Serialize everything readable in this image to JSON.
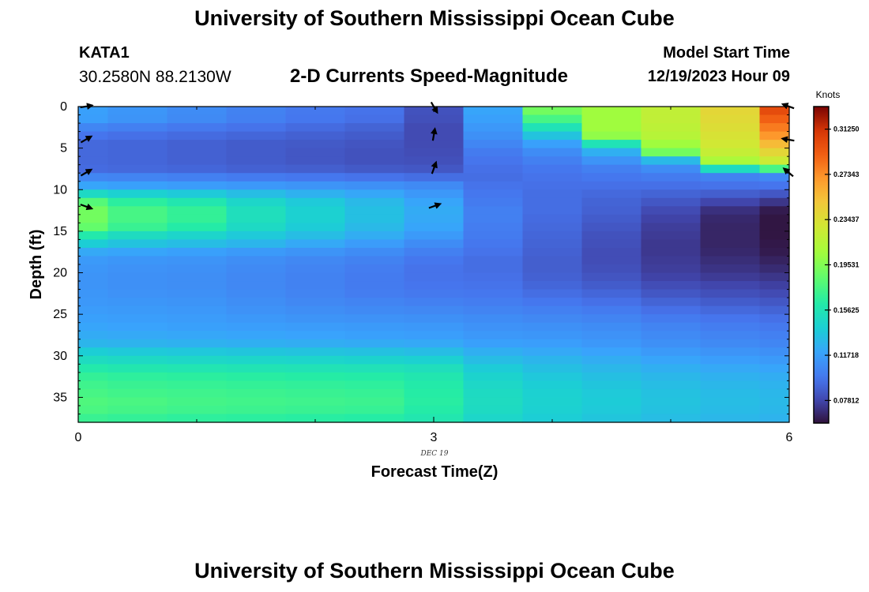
{
  "page": {
    "title": "University of Southern Mississippi Ocean Cube",
    "title_repeat": "University of Southern Mississippi Ocean Cube",
    "station": "KATA1",
    "coordinates": "30.2580N  88.2130W",
    "subtitle": "2-D Currents Speed-Magnitude",
    "model_start_label": "Model Start Time",
    "model_start_value": "12/19/2023 Hour 09"
  },
  "chart_data": {
    "type": "heatmap",
    "title": "2-D Currents Speed-Magnitude",
    "xlabel": "Forecast Time(Z)",
    "ylabel": "Depth (ft)",
    "xlim": [
      0,
      6
    ],
    "ylim": [
      38,
      0
    ],
    "x_ticks": [
      0,
      3,
      6
    ],
    "y_ticks": [
      0,
      5,
      10,
      15,
      20,
      25,
      30,
      35
    ],
    "date_label": "DEC 19",
    "colorbar": {
      "title": "Knots",
      "min": 0.0586,
      "max": 0.332,
      "ticks": [
        "0.07812",
        "0.11718",
        "0.15625",
        "0.19531",
        "0.23437",
        "0.27343",
        "0.31250"
      ]
    },
    "time_edges": [
      0,
      0.25,
      0.75,
      1.25,
      1.75,
      2.25,
      2.75,
      3.25,
      3.75,
      4.25,
      4.75,
      5.25,
      5.75,
      6
    ],
    "depth_edges": [
      0,
      1,
      2,
      3,
      4,
      5,
      6,
      7,
      8,
      9,
      10,
      11,
      12,
      13,
      14,
      15,
      16,
      17,
      18,
      19,
      20,
      21,
      22,
      23,
      24,
      25,
      26,
      27,
      28,
      29,
      30,
      31,
      32,
      33,
      34,
      35,
      36,
      37,
      38
    ],
    "profiles": [
      {
        "time": 0,
        "values": [
          0.118,
          0.117,
          0.105,
          0.097,
          0.092,
          0.092,
          0.092,
          0.093,
          0.105,
          0.12,
          0.148,
          0.18,
          0.19,
          0.19,
          0.185,
          0.16,
          0.14,
          0.122,
          0.115,
          0.113,
          0.112,
          0.112,
          0.113,
          0.114,
          0.116,
          0.118,
          0.12,
          0.123,
          0.128,
          0.14,
          0.15,
          0.16,
          0.168,
          0.172,
          0.175,
          0.178,
          0.176,
          0.17
        ]
      },
      {
        "time": 0.5,
        "values": [
          0.113,
          0.112,
          0.102,
          0.095,
          0.091,
          0.091,
          0.091,
          0.092,
          0.104,
          0.118,
          0.142,
          0.165,
          0.175,
          0.175,
          0.17,
          0.15,
          0.135,
          0.12,
          0.113,
          0.111,
          0.11,
          0.11,
          0.111,
          0.113,
          0.115,
          0.117,
          0.119,
          0.122,
          0.127,
          0.138,
          0.148,
          0.158,
          0.166,
          0.17,
          0.173,
          0.176,
          0.174,
          0.168
        ]
      },
      {
        "time": 1.0,
        "values": [
          0.108,
          0.107,
          0.099,
          0.093,
          0.089,
          0.089,
          0.089,
          0.091,
          0.102,
          0.116,
          0.138,
          0.158,
          0.168,
          0.168,
          0.162,
          0.145,
          0.132,
          0.118,
          0.112,
          0.11,
          0.109,
          0.109,
          0.11,
          0.112,
          0.114,
          0.116,
          0.118,
          0.121,
          0.126,
          0.137,
          0.147,
          0.157,
          0.165,
          0.169,
          0.172,
          0.174,
          0.172,
          0.166
        ]
      },
      {
        "time": 1.5,
        "values": [
          0.103,
          0.102,
          0.096,
          0.091,
          0.087,
          0.087,
          0.087,
          0.089,
          0.1,
          0.114,
          0.132,
          0.146,
          0.152,
          0.152,
          0.148,
          0.138,
          0.128,
          0.115,
          0.109,
          0.107,
          0.106,
          0.106,
          0.107,
          0.109,
          0.111,
          0.114,
          0.117,
          0.12,
          0.125,
          0.136,
          0.146,
          0.156,
          0.164,
          0.168,
          0.171,
          0.173,
          0.171,
          0.165
        ]
      },
      {
        "time": 2.0,
        "values": [
          0.099,
          0.098,
          0.093,
          0.089,
          0.086,
          0.085,
          0.085,
          0.088,
          0.098,
          0.112,
          0.126,
          0.138,
          0.142,
          0.142,
          0.139,
          0.132,
          0.122,
          0.112,
          0.106,
          0.104,
          0.103,
          0.103,
          0.104,
          0.106,
          0.109,
          0.112,
          0.116,
          0.119,
          0.124,
          0.135,
          0.145,
          0.155,
          0.163,
          0.167,
          0.17,
          0.172,
          0.17,
          0.164
        ]
      },
      {
        "time": 2.5,
        "values": [
          0.096,
          0.095,
          0.09,
          0.087,
          0.084,
          0.083,
          0.083,
          0.086,
          0.096,
          0.11,
          0.121,
          0.13,
          0.133,
          0.133,
          0.13,
          0.124,
          0.116,
          0.108,
          0.103,
          0.101,
          0.1,
          0.1,
          0.101,
          0.104,
          0.107,
          0.111,
          0.115,
          0.118,
          0.123,
          0.134,
          0.144,
          0.154,
          0.162,
          0.166,
          0.169,
          0.171,
          0.169,
          0.163
        ]
      },
      {
        "time": 3.0,
        "values": [
          0.083,
          0.082,
          0.08,
          0.08,
          0.08,
          0.081,
          0.082,
          0.085,
          0.094,
          0.107,
          0.114,
          0.12,
          0.123,
          0.122,
          0.12,
          0.115,
          0.108,
          0.102,
          0.098,
          0.096,
          0.096,
          0.097,
          0.099,
          0.102,
          0.106,
          0.11,
          0.114,
          0.117,
          0.122,
          0.132,
          0.142,
          0.152,
          0.158,
          0.161,
          0.163,
          0.164,
          0.162,
          0.158
        ]
      },
      {
        "time": 3.5,
        "values": [
          0.12,
          0.118,
          0.114,
          0.11,
          0.105,
          0.1,
          0.097,
          0.095,
          0.094,
          0.096,
          0.098,
          0.1,
          0.102,
          0.102,
          0.101,
          0.1,
          0.098,
          0.096,
          0.094,
          0.094,
          0.095,
          0.096,
          0.098,
          0.101,
          0.104,
          0.108,
          0.111,
          0.114,
          0.118,
          0.125,
          0.132,
          0.139,
          0.144,
          0.147,
          0.149,
          0.15,
          0.149,
          0.146
        ]
      },
      {
        "time": 4.0,
        "values": [
          0.19,
          0.175,
          0.155,
          0.135,
          0.118,
          0.108,
          0.102,
          0.098,
          0.096,
          0.095,
          0.094,
          0.094,
          0.094,
          0.093,
          0.092,
          0.091,
          0.09,
          0.089,
          0.088,
          0.088,
          0.089,
          0.091,
          0.094,
          0.098,
          0.102,
          0.106,
          0.11,
          0.113,
          0.117,
          0.122,
          0.128,
          0.133,
          0.137,
          0.14,
          0.142,
          0.143,
          0.142,
          0.14
        ]
      },
      {
        "time": 4.5,
        "values": [
          0.205,
          0.205,
          0.205,
          0.2,
          0.155,
          0.125,
          0.112,
          0.102,
          0.098,
          0.095,
          0.092,
          0.09,
          0.089,
          0.087,
          0.085,
          0.083,
          0.082,
          0.081,
          0.081,
          0.082,
          0.084,
          0.087,
          0.091,
          0.095,
          0.1,
          0.104,
          0.108,
          0.111,
          0.114,
          0.119,
          0.124,
          0.129,
          0.133,
          0.136,
          0.138,
          0.139,
          0.138,
          0.136
        ]
      },
      {
        "time": 5.0,
        "values": [
          0.22,
          0.22,
          0.218,
          0.215,
          0.205,
          0.19,
          0.13,
          0.108,
          0.1,
          0.095,
          0.09,
          0.085,
          0.08,
          0.077,
          0.075,
          0.074,
          0.073,
          0.073,
          0.074,
          0.075,
          0.077,
          0.081,
          0.085,
          0.09,
          0.095,
          0.1,
          0.104,
          0.107,
          0.11,
          0.115,
          0.12,
          0.125,
          0.129,
          0.132,
          0.134,
          0.135,
          0.134,
          0.132
        ]
      },
      {
        "time": 5.5,
        "values": [
          0.24,
          0.238,
          0.235,
          0.232,
          0.228,
          0.222,
          0.21,
          0.15,
          0.103,
          0.096,
          0.088,
          0.078,
          0.07,
          0.067,
          0.066,
          0.066,
          0.066,
          0.067,
          0.069,
          0.071,
          0.074,
          0.078,
          0.082,
          0.087,
          0.092,
          0.097,
          0.101,
          0.104,
          0.107,
          0.112,
          0.117,
          0.122,
          0.126,
          0.129,
          0.131,
          0.132,
          0.131,
          0.129
        ]
      },
      {
        "time": 6.0,
        "values": [
          0.3,
          0.29,
          0.28,
          0.27,
          0.255,
          0.24,
          0.225,
          0.175,
          0.106,
          0.097,
          0.085,
          0.072,
          0.062,
          0.06,
          0.06,
          0.06,
          0.061,
          0.062,
          0.065,
          0.068,
          0.072,
          0.076,
          0.08,
          0.085,
          0.09,
          0.095,
          0.099,
          0.102,
          0.105,
          0.11,
          0.115,
          0.12,
          0.124,
          0.127,
          0.129,
          0.13,
          0.129,
          0.127
        ]
      }
    ],
    "vectors": [
      {
        "time": 0.06,
        "depth": 0.0,
        "dir_deg": 80
      },
      {
        "time": 0.06,
        "depth": 4.0,
        "dir_deg": 60
      },
      {
        "time": 0.06,
        "depth": 8.0,
        "dir_deg": 60
      },
      {
        "time": 0.06,
        "depth": 12.0,
        "dir_deg": 110
      },
      {
        "time": 3.0,
        "depth": 0.0,
        "dir_deg": 150
      },
      {
        "time": 3.0,
        "depth": 3.5,
        "dir_deg": 10
      },
      {
        "time": 3.0,
        "depth": 7.5,
        "dir_deg": 20
      },
      {
        "time": 3.0,
        "depth": 12.0,
        "dir_deg": 70
      },
      {
        "time": 6.0,
        "depth": 0.0,
        "dir_deg": 290
      },
      {
        "time": 6.0,
        "depth": 4.0,
        "dir_deg": 280
      },
      {
        "time": 6.0,
        "depth": 8.0,
        "dir_deg": 310
      }
    ]
  }
}
